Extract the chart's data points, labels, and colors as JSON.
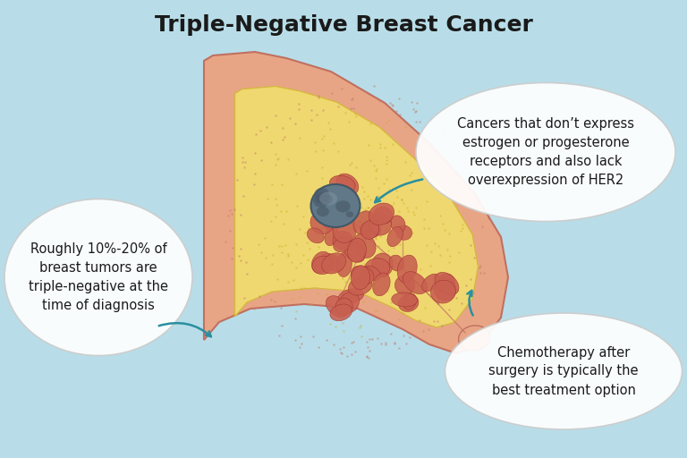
{
  "title": "Triple-Negative Breast Cancer",
  "title_fontsize": 18,
  "title_fontweight": "bold",
  "background_color": "#b8dde8",
  "arrow_color": "#2a8fa0",
  "text_color": "#1a1a1a",
  "callout1_text": "Roughly 10%-20% of\nbreast tumors are\ntriple-negative at the\ntime of diagnosis",
  "callout2_text": "Cancers that don’t express\nestrogen or progesterone\nreceptors and also lack\noverexpression of HER2",
  "callout3_text": "Chemotherapy after\nsurgery is typically the\nbest treatment option",
  "skin_color": "#e8a585",
  "fat_color": "#f0d870",
  "duct_color": "#c07060",
  "tumor_color": "#607888",
  "lobule_color": "#c86050"
}
